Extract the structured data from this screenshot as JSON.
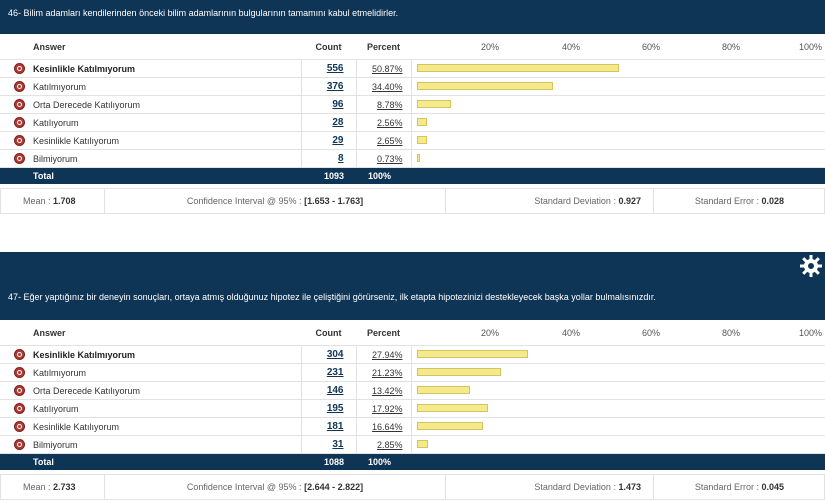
{
  "questions": [
    {
      "title": "46- Bilim adamları kendilerinden önceki bilim adamlarının bulgularının tamamını kabul etmelidirler.",
      "columns": {
        "answer": "Answer",
        "count": "Count",
        "percent": "Percent"
      },
      "scale": [
        "20%",
        "40%",
        "60%",
        "80%",
        "100%"
      ],
      "rows": [
        {
          "label": "Kesinlikle Katılmıyorum",
          "count": "556",
          "percent": "50.87%",
          "value": 50.87,
          "bold": true
        },
        {
          "label": "Katılmıyorum",
          "count": "376",
          "percent": "34.40%",
          "value": 34.4
        },
        {
          "label": "Orta Derecede Katılıyorum",
          "count": "96",
          "percent": "8.78%",
          "value": 8.78
        },
        {
          "label": "Katılıyorum",
          "count": "28",
          "percent": "2.56%",
          "value": 2.56
        },
        {
          "label": "Kesinlikle Katılıyorum",
          "count": "29",
          "percent": "2.65%",
          "value": 2.65
        },
        {
          "label": "Bilmiyorum",
          "count": "8",
          "percent": "0.73%",
          "value": 0.73
        }
      ],
      "total": {
        "label": "Total",
        "count": "1093",
        "percent": "100%"
      },
      "stats": {
        "mean_label": "Mean :",
        "mean": "1.708",
        "ci_label": "Confidence Interval @ 95% :",
        "ci": "[1.653 - 1.763]",
        "sd_label": "Standard Deviation :",
        "sd": "0.927",
        "se_label": "Standard Error :",
        "se": "0.028"
      }
    },
    {
      "title": "47- Eğer yaptığınız bir deneyin sonuçları, ortaya atmış olduğunuz hipotez ile çeliştiğini görürseniz, ilk etapta hipotezinizi destekleyecek başka yollar bulmalısınızdır.",
      "columns": {
        "answer": "Answer",
        "count": "Count",
        "percent": "Percent"
      },
      "scale": [
        "20%",
        "40%",
        "60%",
        "80%",
        "100%"
      ],
      "rows": [
        {
          "label": "Kesinlikle Katılmıyorum",
          "count": "304",
          "percent": "27.94%",
          "value": 27.94,
          "bold": true
        },
        {
          "label": "Katılmıyorum",
          "count": "231",
          "percent": "21.23%",
          "value": 21.23
        },
        {
          "label": "Orta Derecede Katılıyorum",
          "count": "146",
          "percent": "13.42%",
          "value": 13.42
        },
        {
          "label": "Katılıyorum",
          "count": "195",
          "percent": "17.92%",
          "value": 17.92
        },
        {
          "label": "Kesinlikle Katılıyorum",
          "count": "181",
          "percent": "16.64%",
          "value": 16.64
        },
        {
          "label": "Bilmiyorum",
          "count": "31",
          "percent": "2.85%",
          "value": 2.85
        }
      ],
      "total": {
        "label": "Total",
        "count": "1088",
        "percent": "100%"
      },
      "stats": {
        "mean_label": "Mean :",
        "mean": "2.733",
        "ci_label": "Confidence Interval @ 95% :",
        "ci": "[2.644 - 2.822]",
        "sd_label": "Standard Deviation :",
        "sd": "1.473",
        "se_label": "Standard Error :",
        "se": "0.045"
      }
    }
  ],
  "icons": {
    "row": "person-circle-icon",
    "settings": "gear-icon"
  },
  "colors": {
    "header": "#0f3556",
    "bar": "#f5e98e",
    "icon": "#b13a34"
  }
}
